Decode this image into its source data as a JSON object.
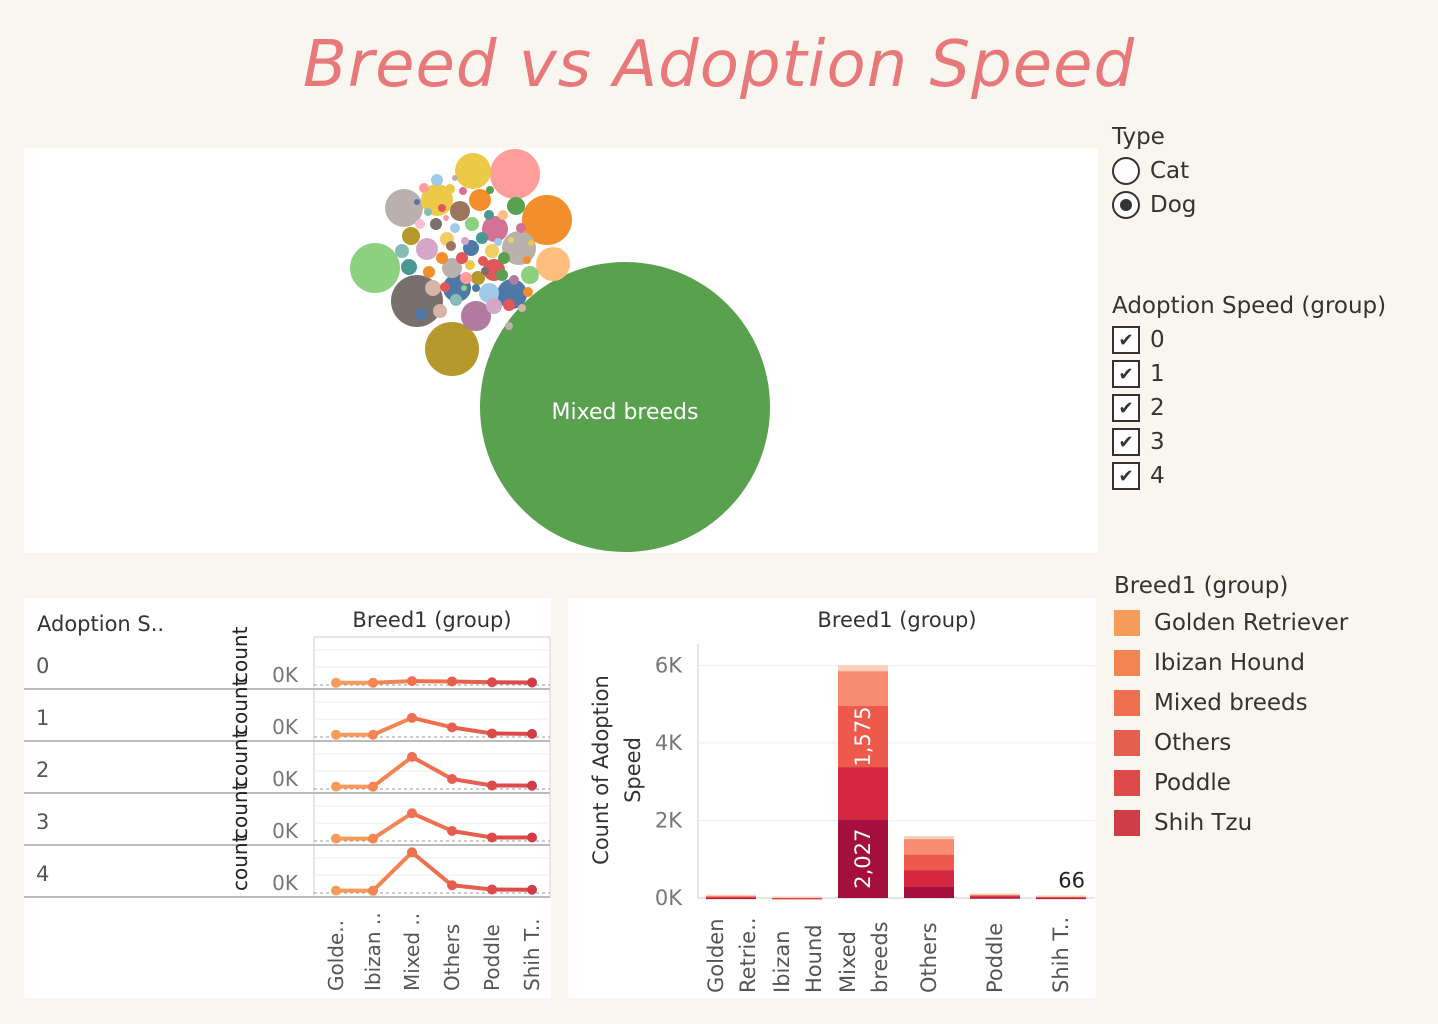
{
  "title": "Breed vs Adoption Speed",
  "type_filter": {
    "title": "Type",
    "options": [
      {
        "label": "Cat",
        "selected": false
      },
      {
        "label": "Dog",
        "selected": true
      }
    ]
  },
  "speed_filter": {
    "title": "Adoption Speed (group)",
    "options": [
      "0",
      "1",
      "2",
      "3",
      "4"
    ]
  },
  "breed_legend": {
    "title": "Breed1 (group)",
    "items": [
      {
        "label": "Golden Retriever",
        "color": "#f79b5a"
      },
      {
        "label": "Ibizan Hound",
        "color": "#f38553"
      },
      {
        "label": "Mixed breeds",
        "color": "#ee7050"
      },
      {
        "label": "Others",
        "color": "#e65e4e"
      },
      {
        "label": "Poddle",
        "color": "#dc4b4a"
      },
      {
        "label": "Shih Tzu",
        "color": "#ce3d48"
      }
    ]
  },
  "chart_data": [
    {
      "type": "bubble",
      "labels": [
        "Mixed breeds"
      ],
      "bubbles": [
        {
          "label": "Mixed breeds",
          "color": "#59a14f"
        }
      ]
    },
    {
      "type": "line",
      "title": "Breed1 (group)",
      "row_header": "Adoption S..",
      "ylabel": "count",
      "ytick": "0K",
      "categories": [
        "Golde..",
        "Ibizan ..",
        "Mixed ..",
        "Others",
        "Poddle",
        "Shih T.."
      ],
      "ylim": [
        0,
        2200
      ],
      "series": [
        {
          "name": "0",
          "values": [
            10,
            12,
            100,
            80,
            40,
            25
          ]
        },
        {
          "name": "1",
          "values": [
            15,
            14,
            900,
            400,
            80,
            60
          ]
        },
        {
          "name": "2",
          "values": [
            20,
            18,
            1575,
            420,
            80,
            70
          ]
        },
        {
          "name": "3",
          "values": [
            22,
            20,
            1350,
            420,
            80,
            80
          ]
        },
        {
          "name": "4",
          "values": [
            20,
            18,
            2027,
            300,
            80,
            66
          ]
        }
      ]
    },
    {
      "type": "bar",
      "stacked": true,
      "title": "Breed1 (group)",
      "ylabel": "Count of Adoption Speed",
      "yticks": [
        "0K",
        "2K",
        "4K",
        "6K"
      ],
      "ylim": [
        0,
        6500
      ],
      "categories": [
        "Golden Retrie..",
        "Ibizan Hound",
        "Mixed breeds",
        "Others",
        "Poddle",
        "Shih T.."
      ],
      "series_colors": [
        "#a50f3d",
        "#d5283f",
        "#ed5a4c",
        "#f78c72",
        "#fbd0bd"
      ],
      "stacks": [
        [
          10,
          15,
          25,
          25,
          10
        ],
        [
          5,
          10,
          10,
          10,
          5
        ],
        [
          2027,
          1350,
          1575,
          900,
          150
        ],
        [
          300,
          420,
          400,
          400,
          80
        ],
        [
          20,
          30,
          30,
          25,
          10
        ],
        [
          10,
          15,
          20,
          15,
          6
        ]
      ],
      "data_labels": [
        {
          "value": "2,027"
        },
        {
          "value": "1,575"
        },
        {
          "value": "66"
        }
      ]
    }
  ]
}
